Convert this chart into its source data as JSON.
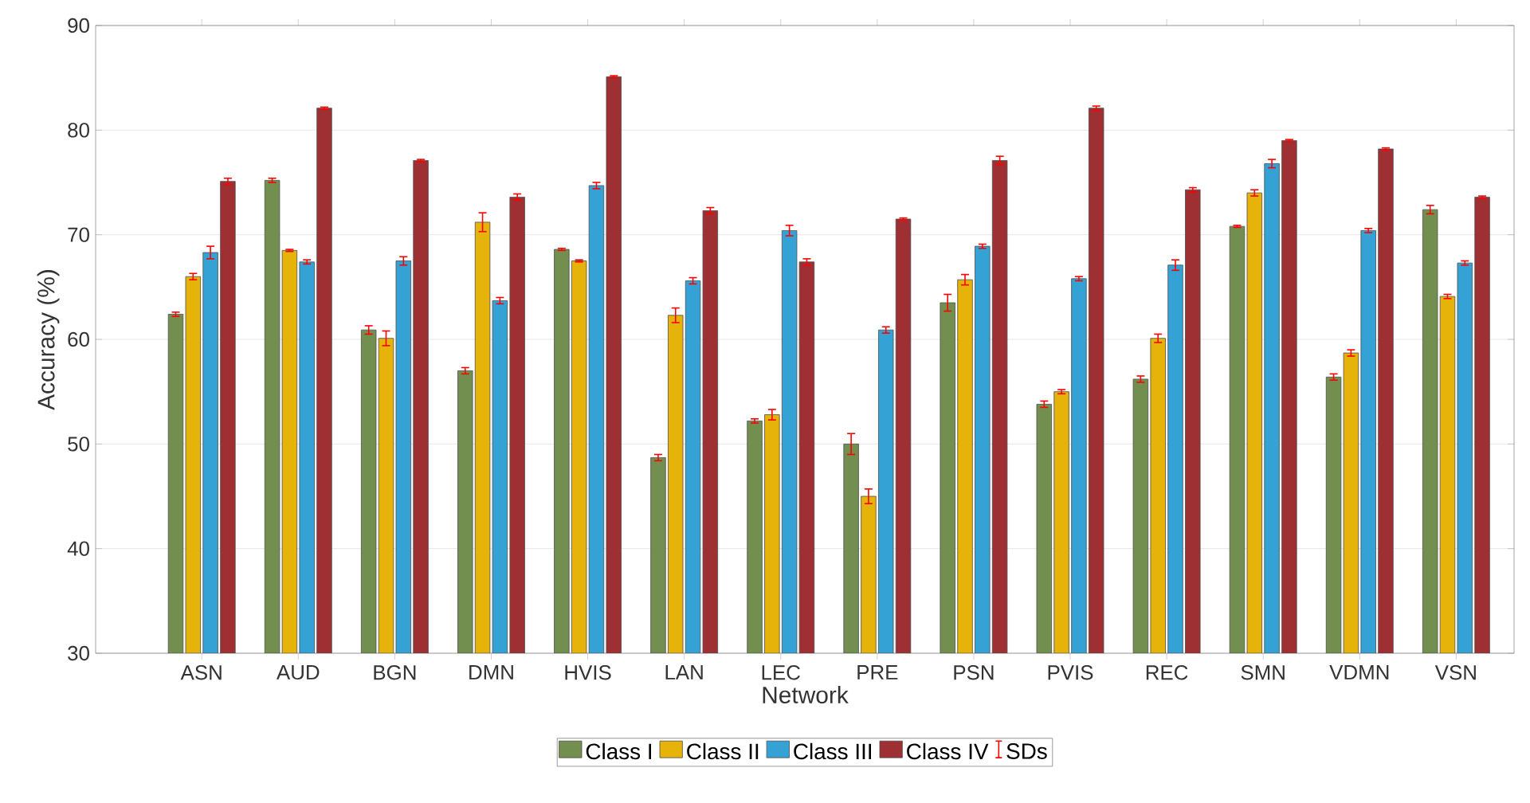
{
  "chart_data": {
    "type": "bar",
    "xlabel": "Network",
    "ylabel": "Accuracy (%)",
    "categories": [
      "ASN",
      "AUD",
      "BGN",
      "DMN",
      "HVIS",
      "LAN",
      "LEC",
      "PRE",
      "PSN",
      "PVIS",
      "REC",
      "SMN",
      "VDMN",
      "VSN"
    ],
    "series": [
      {
        "name": "Class I",
        "color": "#728f50",
        "values": [
          62.4,
          75.2,
          60.9,
          57.0,
          68.6,
          48.7,
          52.2,
          50.0,
          63.5,
          53.8,
          56.2,
          70.8,
          56.4,
          72.4
        ],
        "errors": [
          0.2,
          0.2,
          0.4,
          0.3,
          0.1,
          0.3,
          0.2,
          1.0,
          0.8,
          0.3,
          0.3,
          0.1,
          0.3,
          0.4
        ]
      },
      {
        "name": "Class II",
        "color": "#e6b30a",
        "values": [
          66.0,
          68.5,
          60.1,
          71.2,
          67.5,
          62.3,
          52.8,
          45.0,
          65.7,
          55.0,
          60.1,
          74.0,
          58.7,
          64.1
        ],
        "errors": [
          0.3,
          0.1,
          0.7,
          0.9,
          0.1,
          0.7,
          0.5,
          0.7,
          0.5,
          0.2,
          0.4,
          0.3,
          0.3,
          0.2
        ]
      },
      {
        "name": "Class III",
        "color": "#35a2d6",
        "values": [
          68.3,
          67.4,
          67.5,
          63.7,
          74.7,
          65.6,
          70.4,
          60.9,
          68.9,
          65.8,
          67.1,
          76.8,
          70.4,
          67.3
        ],
        "errors": [
          0.6,
          0.2,
          0.4,
          0.3,
          0.3,
          0.3,
          0.5,
          0.3,
          0.2,
          0.2,
          0.5,
          0.4,
          0.2,
          0.2
        ]
      },
      {
        "name": "Class IV",
        "color": "#9e3034",
        "values": [
          75.1,
          82.1,
          77.1,
          73.6,
          85.1,
          72.3,
          67.4,
          71.5,
          77.1,
          82.1,
          74.3,
          79.0,
          78.2,
          73.6
        ],
        "errors": [
          0.3,
          0.1,
          0.1,
          0.3,
          0.1,
          0.3,
          0.3,
          0.1,
          0.4,
          0.2,
          0.2,
          0.1,
          0.1,
          0.1
        ]
      }
    ],
    "annotations": [
      "SDs"
    ],
    "ylim": [
      30,
      90
    ],
    "yticks": [
      30,
      40,
      50,
      60,
      70,
      80,
      90
    ],
    "grid": "y",
    "legend": "bottom"
  }
}
